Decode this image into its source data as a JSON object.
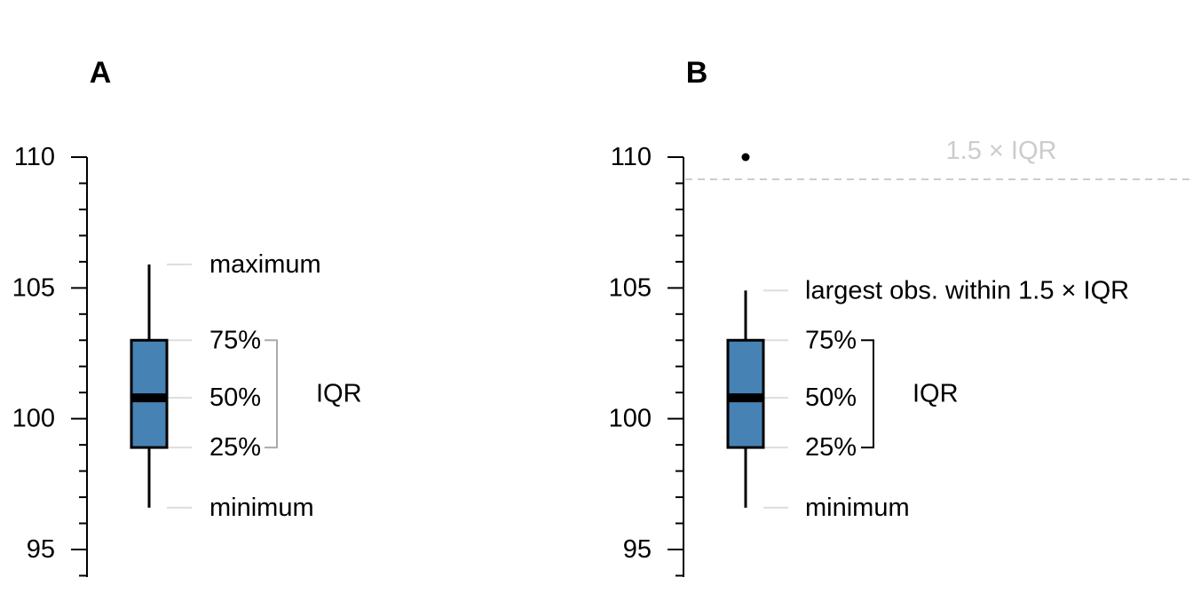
{
  "chart_data": [
    {
      "type": "boxplot",
      "panel_label": "A",
      "ylim": [
        94,
        110
      ],
      "y_ticks": [
        95,
        100,
        105,
        110
      ],
      "y_tick_labels": [
        "95",
        "100",
        "105",
        "110"
      ],
      "minor_tick_step": 1,
      "grid": false,
      "box": {
        "min": 96.6,
        "q1": 98.9,
        "median": 100.8,
        "q3": 103.0,
        "max": 105.9,
        "whisker_high": 105.9,
        "outliers": []
      },
      "annotations": [
        {
          "key": "max",
          "text": "maximum"
        },
        {
          "key": "q3",
          "text": "75%"
        },
        {
          "key": "median",
          "text": "50%"
        },
        {
          "key": "q1",
          "text": "25%"
        },
        {
          "key": "min",
          "text": "minimum"
        }
      ],
      "iqr_label": "IQR",
      "iqr_bracket_color": "#aaaaaa",
      "threshold": null
    },
    {
      "type": "boxplot",
      "panel_label": "B",
      "ylim": [
        94,
        110
      ],
      "y_ticks": [
        95,
        100,
        105,
        110
      ],
      "y_tick_labels": [
        "95",
        "100",
        "105",
        "110"
      ],
      "minor_tick_step": 1,
      "grid": false,
      "box": {
        "min": 96.6,
        "q1": 98.9,
        "median": 100.8,
        "q3": 103.0,
        "max": 110.0,
        "whisker_high": 104.9,
        "outliers": [
          110.0
        ]
      },
      "annotations": [
        {
          "key": "whisker_high",
          "text": "largest obs. within 1.5 × IQR"
        },
        {
          "key": "q3",
          "text": "75%"
        },
        {
          "key": "median",
          "text": "50%"
        },
        {
          "key": "q1",
          "text": "25%"
        },
        {
          "key": "min",
          "text": "minimum"
        }
      ],
      "iqr_label": "IQR",
      "iqr_bracket_color": "#000000",
      "threshold": {
        "value": 109.15,
        "label": "1.5 × IQR",
        "color": "#cccccc"
      }
    }
  ],
  "colors": {
    "box_fill": "#4682b4",
    "box_line": "#000000",
    "leader_line": "#dddddd",
    "text": "#000000"
  }
}
